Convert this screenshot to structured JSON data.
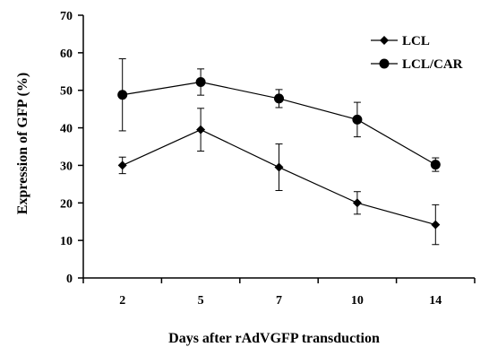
{
  "chart_data": {
    "type": "line",
    "categories": [
      "2",
      "5",
      "7",
      "10",
      "14"
    ],
    "series": [
      {
        "name": "LCL",
        "marker": "diamond",
        "values": [
          30,
          39.5,
          29.5,
          20,
          14.2
        ],
        "errors": [
          2.2,
          5.7,
          6.2,
          3.0,
          5.3
        ]
      },
      {
        "name": "LCL/CAR",
        "marker": "circle",
        "values": [
          48.8,
          52.2,
          47.8,
          42.2,
          30.2
        ],
        "errors": [
          9.6,
          3.5,
          2.4,
          4.6,
          1.8
        ]
      }
    ],
    "title": "",
    "xlabel": "Days after rAdVGFP transduction",
    "ylabel": "Expression of GFP (%)",
    "ylim": [
      0,
      70
    ],
    "yticks": [
      0,
      10,
      20,
      30,
      40,
      50,
      60,
      70
    ],
    "grid": false,
    "legend_position": "top-right",
    "colors": {
      "series": "#000000",
      "background": "#ffffff"
    }
  }
}
